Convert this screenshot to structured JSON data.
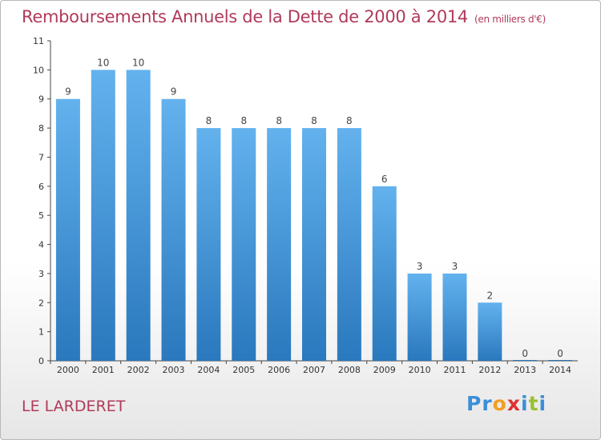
{
  "header": {
    "title": "Remboursements Annuels de la Dette de 2000 à 2014",
    "unit": "(en milliers d'€)"
  },
  "footer": {
    "commune": "LE LARDERET",
    "brand": "Proxiti"
  },
  "colors": {
    "title": "#b03a5a",
    "bar_top": "#63b2ee",
    "bar_bottom": "#2a78bd"
  },
  "chart_data": {
    "type": "bar",
    "title": "Remboursements Annuels de la Dette de 2000 à 2014",
    "xlabel": "",
    "ylabel": "",
    "categories": [
      "2000",
      "2001",
      "2002",
      "2003",
      "2004",
      "2005",
      "2006",
      "2007",
      "2008",
      "2009",
      "2010",
      "2011",
      "2012",
      "2013",
      "2014"
    ],
    "values": [
      9,
      10,
      10,
      9,
      8,
      8,
      8,
      8,
      8,
      6,
      3,
      3,
      2,
      0,
      0
    ],
    "ylim": [
      0,
      11
    ],
    "yticks": [
      0,
      1,
      2,
      3,
      4,
      5,
      6,
      7,
      8,
      9,
      10,
      11
    ],
    "grid": false,
    "legend": "none"
  }
}
